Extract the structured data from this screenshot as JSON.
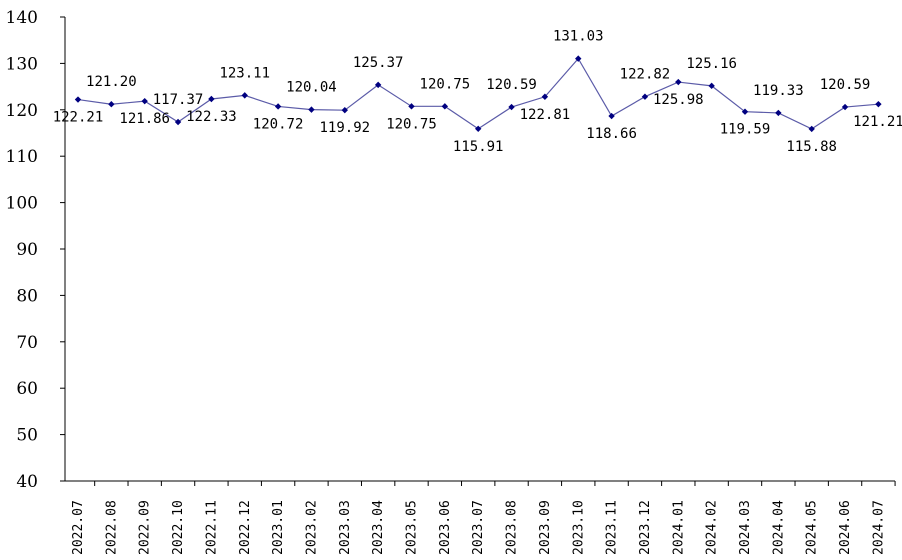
{
  "chart_data": {
    "type": "line",
    "title": "",
    "xlabel": "",
    "ylabel": "",
    "ylim": [
      40,
      140
    ],
    "yticks": [
      "40",
      "50",
      "60",
      "70",
      "80",
      "90",
      "100",
      "110",
      "120",
      "130",
      "140"
    ],
    "grid": false,
    "legend": "none",
    "series_color": "#000080",
    "line_color": "#5b5ba8",
    "categories": [
      "2022.07",
      "2022.08",
      "2022.09",
      "2022.10",
      "2022.11",
      "2022.12",
      "2023.01",
      "2023.02",
      "2023.03",
      "2023.04",
      "2023.05",
      "2023.06",
      "2023.07",
      "2023.08",
      "2023.09",
      "2023.10",
      "2023.11",
      "2023.12",
      "2024.01",
      "2024.02",
      "2024.03",
      "2024.04",
      "2024.05",
      "2024.06",
      "2024.07"
    ],
    "values": [
      122.21,
      121.2,
      121.86,
      117.37,
      122.33,
      123.11,
      120.72,
      120.04,
      119.92,
      125.37,
      120.75,
      120.75,
      115.91,
      120.59,
      122.81,
      131.03,
      118.66,
      122.82,
      125.98,
      125.16,
      119.59,
      119.33,
      115.88,
      120.59,
      121.21
    ],
    "labels": [
      "122.21",
      "121.20",
      "121.86",
      "117.37",
      "122.33",
      "123.11",
      "120.72",
      "120.04",
      "119.92",
      "125.37",
      "120.75",
      "120.75",
      "115.91",
      "120.59",
      "122.81",
      "131.03",
      "118.66",
      "122.82",
      "125.98",
      "125.16",
      "119.59",
      "119.33",
      "115.88",
      "120.59",
      "121.21"
    ]
  }
}
